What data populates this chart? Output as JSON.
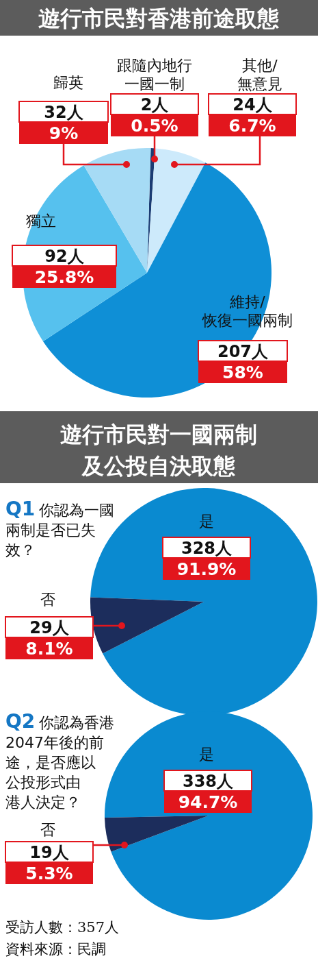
{
  "chart_data": [
    {
      "type": "pie",
      "title": "遊行市民對香港前途取態",
      "categories": [
        "跟隨內地行一國一制",
        "其他/無意見",
        "維持/恢復一國兩制",
        "獨立",
        "歸英"
      ],
      "values": [
        2,
        24,
        207,
        92,
        32
      ],
      "colors": [
        "#1b3c73",
        "#cdeafb",
        "#0f8fd6",
        "#56c1ee",
        "#a6dbf5"
      ],
      "value_labels": [
        "2人\n0.5%",
        "24人\n6.7%",
        "207人\n58%",
        "92人\n25.8%",
        "32人\n9%"
      ]
    },
    {
      "type": "pie",
      "title": "遊行市民對一國兩制及公投自決取態",
      "subtitle": "Q1 你認為一國兩制是否已失效？",
      "categories": [
        "是",
        "否"
      ],
      "values": [
        328,
        29
      ],
      "colors": [
        "#0a8ad0",
        "#1c2d5c"
      ],
      "value_labels": [
        "328人\n91.9%",
        "29人\n8.1%"
      ]
    },
    {
      "type": "pie",
      "subtitle": "Q2 你認為香港2047年後的前途，是否應以公投形式由港人決定？",
      "categories": [
        "是",
        "否"
      ],
      "values": [
        338,
        19
      ],
      "colors": [
        "#0a8ad0",
        "#1c2d5c"
      ],
      "value_labels": [
        "338人\n94.7%",
        "19人\n5.3%"
      ],
      "annotations": [
        "受訪人數：357人",
        "資料來源：民調"
      ]
    }
  ]
}
